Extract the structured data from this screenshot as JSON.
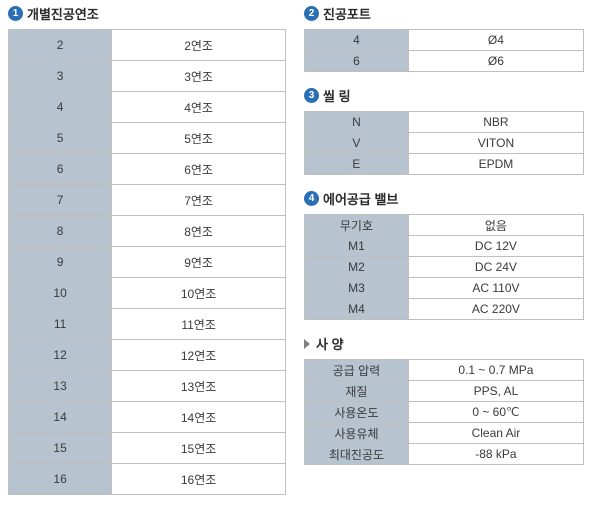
{
  "colors": {
    "badge_bg": "#2a6fb5",
    "key_bg": "#b7c3cf",
    "border": "#bfbfbf",
    "arrow": "#808080"
  },
  "left": {
    "s1": {
      "num": "1",
      "title": "개별진공연조",
      "rows": [
        {
          "k": "2",
          "v": "2연조"
        },
        {
          "k": "3",
          "v": "3연조"
        },
        {
          "k": "4",
          "v": "4연조"
        },
        {
          "k": "5",
          "v": "5연조"
        },
        {
          "k": "6",
          "v": "6연조"
        },
        {
          "k": "7",
          "v": "7연조"
        },
        {
          "k": "8",
          "v": "8연조"
        },
        {
          "k": "9",
          "v": "9연조"
        },
        {
          "k": "10",
          "v": "10연조"
        },
        {
          "k": "11",
          "v": "11연조"
        },
        {
          "k": "12",
          "v": "12연조"
        },
        {
          "k": "13",
          "v": "13연조"
        },
        {
          "k": "14",
          "v": "14연조"
        },
        {
          "k": "15",
          "v": "15연조"
        },
        {
          "k": "16",
          "v": "16연조"
        }
      ]
    }
  },
  "right": {
    "s2": {
      "num": "2",
      "title": "진공포트",
      "rows": [
        {
          "k": "4",
          "v": "Ø4"
        },
        {
          "k": "6",
          "v": "Ø6"
        }
      ]
    },
    "s3": {
      "num": "3",
      "title": "씰 링",
      "rows": [
        {
          "k": "N",
          "v": "NBR"
        },
        {
          "k": "V",
          "v": "VITON"
        },
        {
          "k": "E",
          "v": "EPDM"
        }
      ]
    },
    "s4": {
      "num": "4",
      "title": "에어공급 밸브",
      "rows": [
        {
          "k": "무기호",
          "v": "없음"
        },
        {
          "k": "M1",
          "v": "DC 12V"
        },
        {
          "k": "M2",
          "v": "DC 24V"
        },
        {
          "k": "M3",
          "v": "AC 110V"
        },
        {
          "k": "M4",
          "v": "AC 220V"
        }
      ]
    },
    "spec": {
      "title": "사 양",
      "rows": [
        {
          "k": "공급 압력",
          "v": "0.1 ~ 0.7 MPa"
        },
        {
          "k": "재질",
          "v": "PPS, AL"
        },
        {
          "k": "사용온도",
          "v": "0 ~ 60℃"
        },
        {
          "k": "사용유체",
          "v": "Clean Air"
        },
        {
          "k": "최대진공도",
          "v": "-88 kPa"
        }
      ]
    }
  }
}
